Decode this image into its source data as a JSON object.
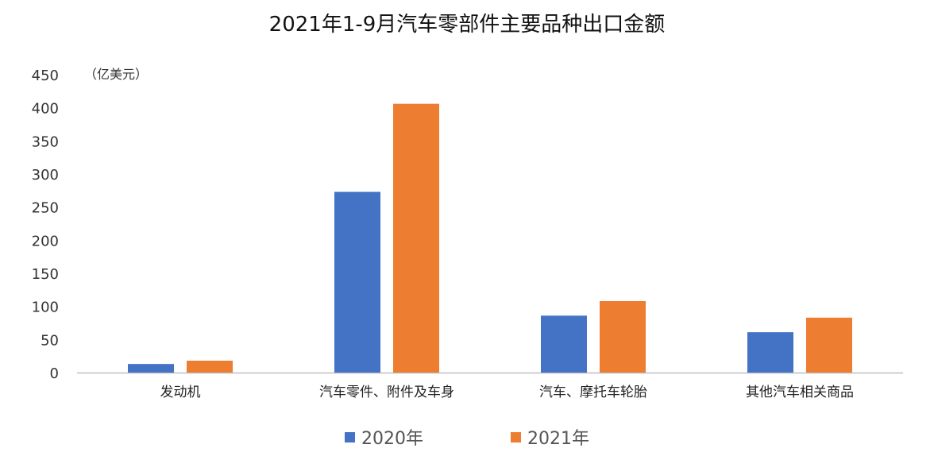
{
  "chart_data": {
    "type": "bar",
    "title": "2021年1-9月汽车零部件主要品种出口金额",
    "unit_label": "（亿美元）",
    "xlabel": "",
    "ylabel": "",
    "ylim": [
      0,
      450
    ],
    "y_ticks": [
      0,
      50,
      100,
      150,
      200,
      250,
      300,
      350,
      400,
      450
    ],
    "categories": [
      "发动机",
      "汽车零件、附件及车身",
      "汽车、摩托车轮胎",
      "其他汽车相关商品"
    ],
    "series": [
      {
        "name": "2020年",
        "color": "#4472C4",
        "values": [
          13,
          273,
          86,
          61
        ]
      },
      {
        "name": "2021年",
        "color": "#ED7D31",
        "values": [
          18,
          406,
          108,
          83
        ]
      }
    ],
    "grid": false,
    "legend_position": "bottom"
  }
}
